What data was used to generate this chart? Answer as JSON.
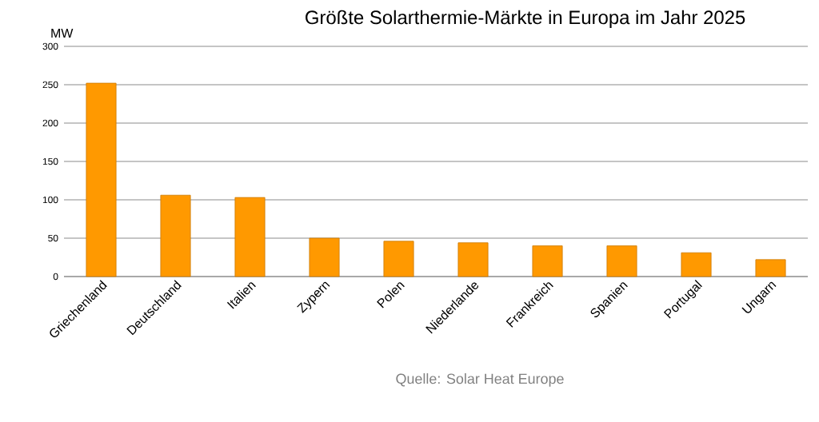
{
  "chart_data": {
    "type": "bar",
    "title": "Größte Solarthermie-Märkte  in Europa im Jahr 2025",
    "ylabel": "MW",
    "categories": [
      "Griechenland",
      "Deutschland",
      "Italien",
      "Zypern",
      "Polen",
      "Niederlande",
      "Frankreich",
      "Spanien",
      "Portugal",
      "Ungarn"
    ],
    "values": [
      252,
      106,
      103,
      50,
      46,
      44,
      40,
      40,
      31,
      22
    ],
    "color": "#ff9900",
    "ylim": [
      0,
      300
    ],
    "yticks": [
      0,
      50,
      100,
      150,
      200,
      250,
      300
    ],
    "grid": "y",
    "annotations": [
      "Quelle: Solar Heat Europe"
    ]
  }
}
